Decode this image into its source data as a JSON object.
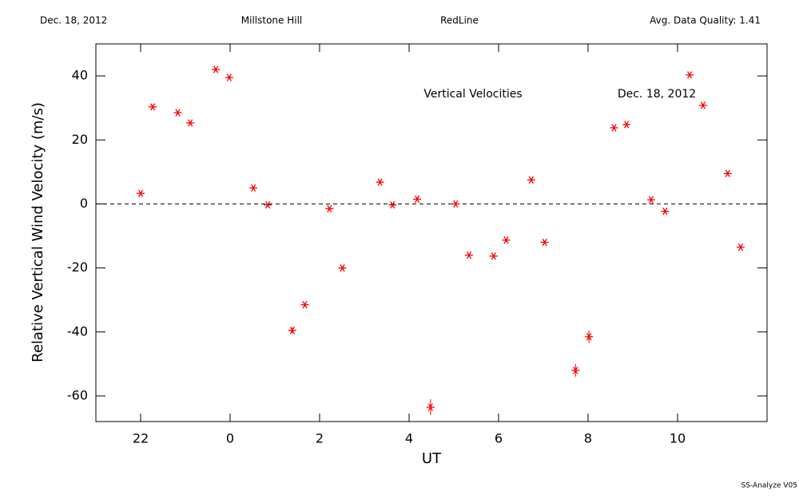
{
  "chart_data": {
    "type": "scatter",
    "header": [
      "Dec. 18, 2012",
      "Millstone Hill",
      "RedLine",
      "Avg. Data Quality: 1.41"
    ],
    "annotations": [
      "Vertical Velocities",
      "Dec. 18, 2012"
    ],
    "footer": "SS-Analyze V05",
    "x_label": "UT",
    "y_label": "Relative Vertical Wind Velocity (m/s)",
    "xlim": [
      -3,
      12
    ],
    "ylim": [
      -68,
      50
    ],
    "xticks": [
      {
        "value": -2,
        "label": "22"
      },
      0,
      2,
      4,
      6,
      8,
      10
    ],
    "yticks": [
      -60,
      -40,
      -20,
      0,
      20,
      40
    ],
    "hline": 0,
    "series": [
      {
        "color": "#ff0000",
        "x": [
          -2.0,
          -1.73,
          -1.17,
          -0.89,
          -0.32,
          -0.02,
          0.52,
          0.84,
          1.39,
          1.67,
          2.22,
          2.51,
          3.35,
          3.63,
          4.18,
          4.48,
          5.04,
          5.34,
          5.89,
          6.17,
          6.73,
          7.03,
          7.72,
          8.02,
          8.58,
          8.86,
          9.41,
          9.72,
          10.27,
          10.57,
          11.12,
          11.41
        ],
        "values": [
          3.3,
          30.3,
          28.5,
          25.3,
          42,
          39.5,
          5,
          -0.3,
          -39.5,
          -31.5,
          -1.5,
          -20,
          6.8,
          -0.3,
          1.5,
          -63.5,
          0,
          -16,
          -16.3,
          -11.3,
          7.5,
          -12,
          -52,
          -41.5,
          23.8,
          24.8,
          1.3,
          -2.3,
          40.3,
          30.8,
          9.5,
          -13.5
        ],
        "errors": [
          0.5,
          0.5,
          0.5,
          0.5,
          0.5,
          0.5,
          0.5,
          0.5,
          1,
          0.5,
          0.5,
          0.5,
          0.5,
          0.5,
          0.5,
          2.5,
          0.5,
          0.5,
          0.5,
          0.5,
          0.5,
          0.5,
          2,
          2,
          0.5,
          0.5,
          0.5,
          0.5,
          0.5,
          0.5,
          0.5,
          0.5
        ]
      }
    ]
  }
}
